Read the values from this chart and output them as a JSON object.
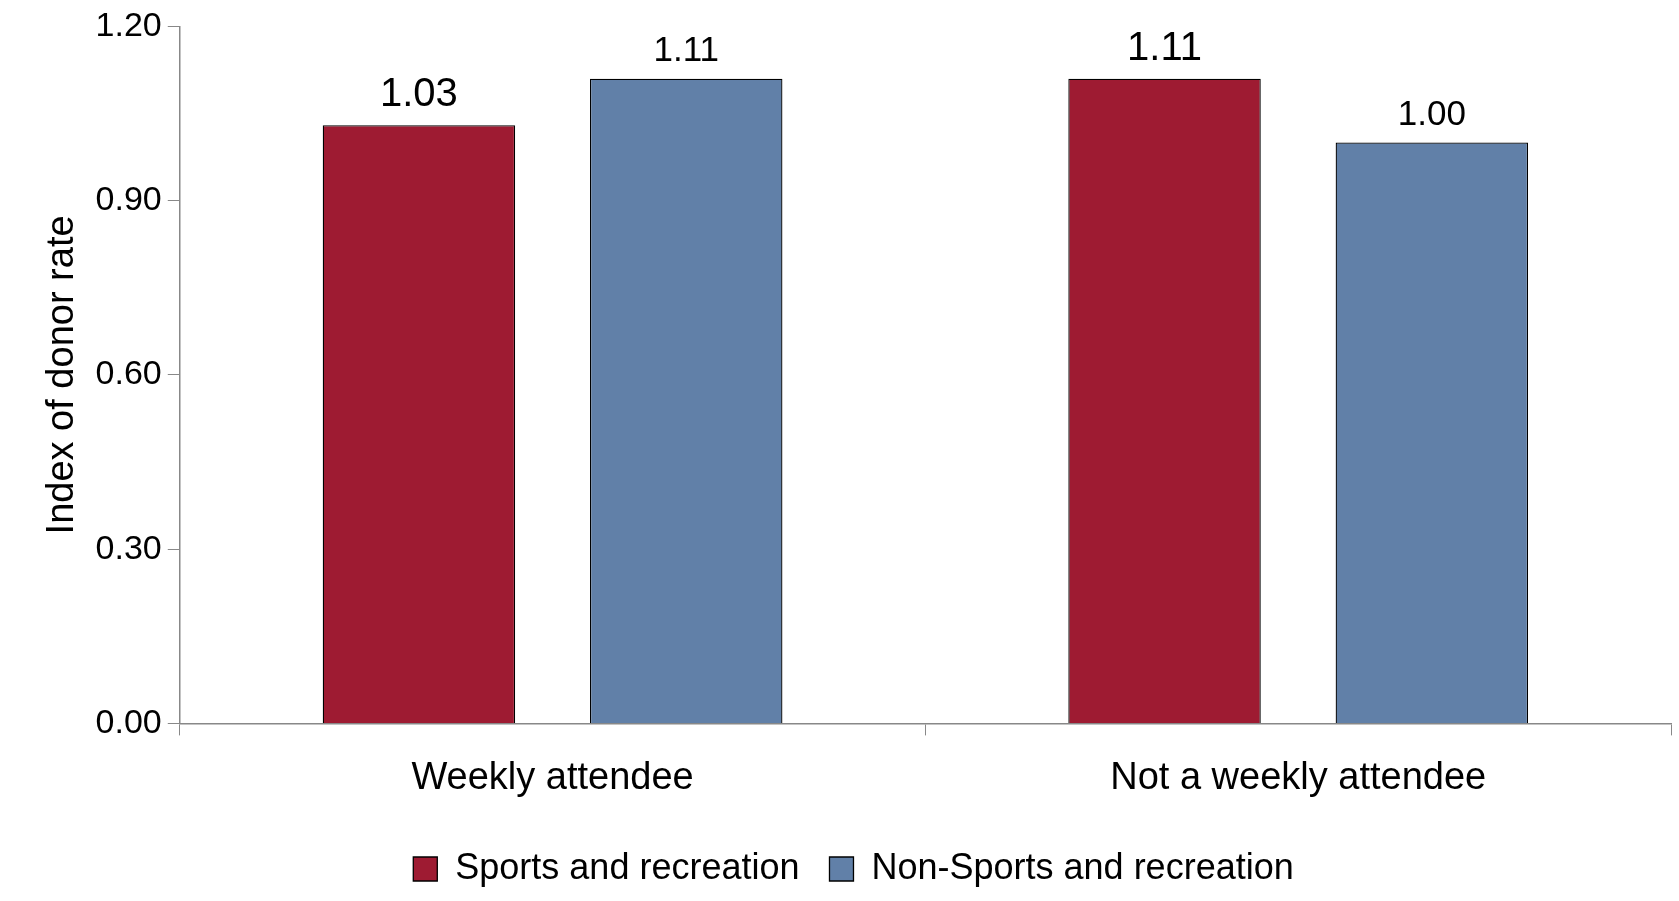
{
  "chart_data": {
    "type": "bar",
    "ylabel": "Index of donor rate",
    "categories": [
      "Weekly attendee",
      "Not a weekly attendee"
    ],
    "series": [
      {
        "name": "Sports and recreation",
        "color": "#9e1b32",
        "values": [
          1.03,
          1.11
        ],
        "value_labels": [
          "1.03",
          "1.11"
        ]
      },
      {
        "name": "Non-Sports and recreation",
        "color": "#6180a8",
        "values": [
          1.11,
          1.0
        ],
        "value_labels": [
          "1.11",
          "1.00"
        ]
      }
    ],
    "ylim": [
      0,
      1.2
    ],
    "yticks": [
      {
        "value": 0,
        "label": "0.00"
      },
      {
        "value": 0.3,
        "label": "0.30"
      },
      {
        "value": 0.6,
        "label": "0.60"
      },
      {
        "value": 0.9,
        "label": "0.90"
      },
      {
        "value": 1.2,
        "label": "1.20"
      }
    ],
    "grid": false,
    "legend": "bottom"
  }
}
